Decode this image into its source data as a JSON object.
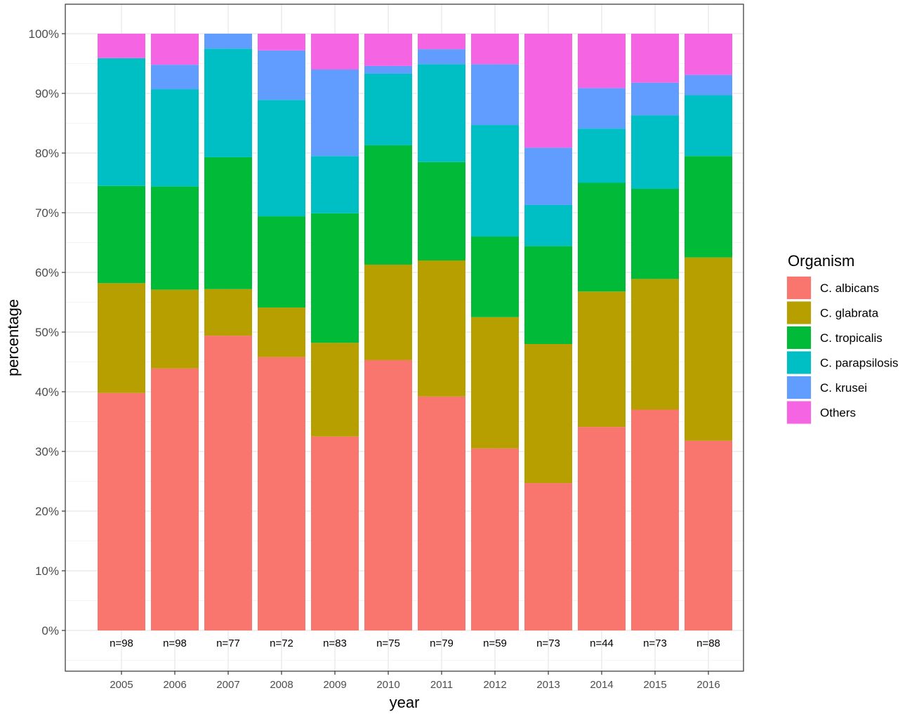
{
  "chart_data": {
    "type": "bar",
    "stacked": true,
    "percent": true,
    "xlabel": "year",
    "ylabel": "percentage",
    "ylim": [
      0,
      1
    ],
    "y_ticks": [
      "0%",
      "10%",
      "20%",
      "30%",
      "40%",
      "50%",
      "60%",
      "70%",
      "80%",
      "90%",
      "100%"
    ],
    "grid": true,
    "categories": [
      "2005",
      "2006",
      "2007",
      "2008",
      "2009",
      "2010",
      "2011",
      "2012",
      "2013",
      "2014",
      "2015",
      "2016"
    ],
    "counts": [
      "n=98",
      "n=98",
      "n=77",
      "n=72",
      "n=83",
      "n=75",
      "n=79",
      "n=59",
      "n=73",
      "n=44",
      "n=73",
      "n=88"
    ],
    "legend": {
      "title": "Organism",
      "position": "right"
    },
    "series": [
      {
        "name": "C. albicans",
        "color": "#F8766D",
        "values": [
          0.398,
          0.439,
          0.494,
          0.458,
          0.325,
          0.453,
          0.392,
          0.305,
          0.247,
          0.341,
          0.37,
          0.318
        ]
      },
      {
        "name": "C. glabrata",
        "color": "#B79F00",
        "values": [
          0.184,
          0.132,
          0.078,
          0.083,
          0.157,
          0.16,
          0.228,
          0.22,
          0.233,
          0.227,
          0.219,
          0.307
        ]
      },
      {
        "name": "C. tropicalis",
        "color": "#00BA38",
        "values": [
          0.163,
          0.173,
          0.221,
          0.153,
          0.217,
          0.2,
          0.165,
          0.135,
          0.164,
          0.182,
          0.151,
          0.17
        ]
      },
      {
        "name": "C. parapsilosis",
        "color": "#00BFC4",
        "values": [
          0.214,
          0.163,
          0.182,
          0.195,
          0.096,
          0.12,
          0.164,
          0.187,
          0.069,
          0.091,
          0.123,
          0.102
        ]
      },
      {
        "name": "C. krusei",
        "color": "#619CFF",
        "values": [
          0.0,
          0.041,
          0.025,
          0.083,
          0.145,
          0.013,
          0.025,
          0.102,
          0.096,
          0.068,
          0.055,
          0.034
        ]
      },
      {
        "name": "Others",
        "color": "#F564E3",
        "values": [
          0.041,
          0.052,
          0.0,
          0.028,
          0.06,
          0.054,
          0.026,
          0.051,
          0.191,
          0.091,
          0.082,
          0.069
        ]
      }
    ]
  }
}
